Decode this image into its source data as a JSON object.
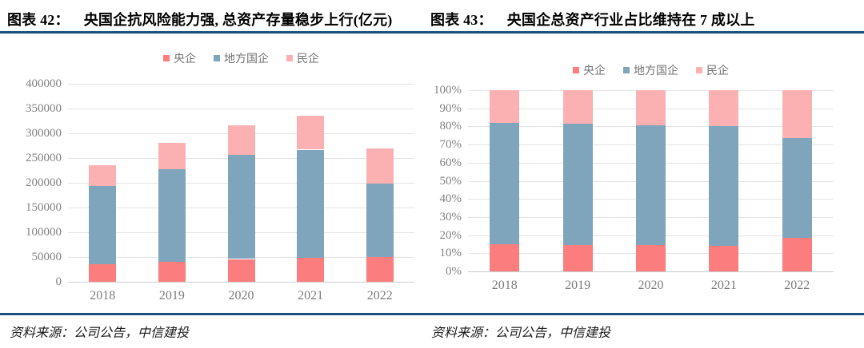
{
  "header": {
    "left_label": "图表 42：",
    "left_title": "央国企抗风险能力强, 总资产存量稳步上行(亿元)",
    "right_label": "图表 43：",
    "right_title": "央国企总资产行业占比维持在 7 成以上"
  },
  "footer": {
    "left_source": "资料来源：公司公告，中信建投",
    "right_source": "资料来源：公司公告，中信建投"
  },
  "colors": {
    "divider_rule": "#1C4F7C",
    "central_soe_red": "#FB7D7E",
    "local_soe_blue": "#7FA5BD",
    "private_pink": "#FBB1B1",
    "axis_text_gray": "#838383",
    "gridline_gray": "#E4E4E4"
  },
  "chart_data": [
    {
      "id": "chart-42",
      "type": "bar",
      "stacked": true,
      "title": "央国企抗风险能力强, 总资产存量稳步上行(亿元)",
      "unit_label": "亿元",
      "categories": [
        "2018",
        "2019",
        "2020",
        "2021",
        "2022"
      ],
      "series": [
        {
          "name": "央企",
          "color": "#FB7D7E",
          "values": [
            35000,
            40000,
            46000,
            48000,
            50000
          ]
        },
        {
          "name": "地方国企",
          "color": "#7FA5BD",
          "values": [
            158000,
            188000,
            210000,
            219000,
            148000
          ]
        },
        {
          "name": "民企",
          "color": "#FBB1B1",
          "values": [
            42000,
            52000,
            61000,
            68000,
            71000
          ]
        }
      ],
      "totals": [
        235000,
        280000,
        317000,
        335000,
        269000
      ],
      "xlabel": "",
      "ylabel": "",
      "ylim": [
        0,
        400000
      ],
      "ytick_step": 50000,
      "ytick_labels": [
        "0",
        "50000",
        "100000",
        "150000",
        "200000",
        "250000",
        "300000",
        "350000",
        "400000"
      ],
      "grid": true,
      "legend_position": "top"
    },
    {
      "id": "chart-43",
      "type": "bar",
      "stacked": true,
      "title": "央国企总资产行业占比维持在 7 成以上",
      "unit_label": "%",
      "categories": [
        "2018",
        "2019",
        "2020",
        "2021",
        "2022"
      ],
      "series": [
        {
          "name": "央企",
          "color": "#FB7D7E",
          "values": [
            15.0,
            14.5,
            14.7,
            14.0,
            18.4
          ]
        },
        {
          "name": "地方国企",
          "color": "#7FA5BD",
          "values": [
            67.0,
            67.0,
            66.0,
            66.0,
            55.2
          ]
        },
        {
          "name": "民企",
          "color": "#FBB1B1",
          "values": [
            18.0,
            18.5,
            19.3,
            20.0,
            26.4
          ]
        }
      ],
      "xlabel": "",
      "ylabel": "",
      "ylim": [
        0,
        100
      ],
      "ytick_step": 10,
      "ytick_labels": [
        "0%",
        "10%",
        "20%",
        "30%",
        "40%",
        "50%",
        "60%",
        "70%",
        "80%",
        "90%",
        "100%"
      ],
      "grid": true,
      "legend_position": "top"
    }
  ]
}
